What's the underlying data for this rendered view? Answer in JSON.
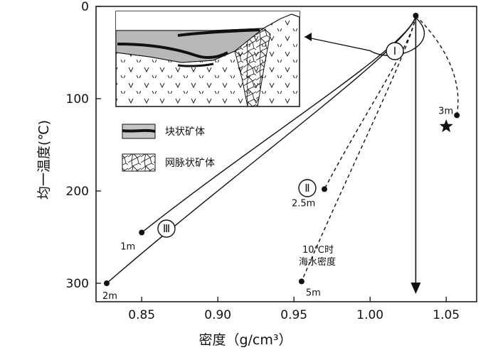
{
  "chart_data": {
    "type": "line",
    "xlabel": "密度（g/cm³）",
    "ylabel": "均一温度(℃)",
    "xlim": [
      0.82,
      1.07
    ],
    "ylim": [
      0,
      320
    ],
    "y_inverted": true,
    "x_ticks": [
      "0.85",
      "0.90",
      "0.95",
      "1.00",
      "1.05"
    ],
    "x_tick_values": [
      0.85,
      0.9,
      0.95,
      1.0,
      1.05
    ],
    "y_ticks": [
      "0",
      "100",
      "200",
      "300"
    ],
    "y_tick_values": [
      0,
      100,
      200,
      300
    ],
    "origin_point": {
      "x": 1.03,
      "y": 10
    },
    "paths": [
      {
        "group": "III",
        "style": "solid",
        "end": {
          "x": 0.85,
          "y": 245
        },
        "label": "1m"
      },
      {
        "group": "III",
        "style": "solid",
        "end": {
          "x": 0.827,
          "y": 300
        },
        "label": "2m"
      },
      {
        "group": "II",
        "style": "dashed",
        "end": {
          "x": 0.97,
          "y": 198
        },
        "label": "2.5m"
      },
      {
        "group": "II",
        "style": "dashed",
        "end": {
          "x": 0.955,
          "y": 298
        },
        "label": "5m"
      },
      {
        "group": "I",
        "style": "dashed",
        "end": {
          "x": 1.057,
          "y": 118
        },
        "label": "3m"
      },
      {
        "group": "I",
        "style": "arrow",
        "end": {
          "x": 1.03,
          "y": 310
        },
        "label": ""
      }
    ],
    "star_marker": {
      "x": 1.05,
      "y": 130
    },
    "group_labels": [
      "Ⅰ",
      "Ⅱ",
      "Ⅲ"
    ],
    "seawater_note": [
      "10℃时",
      "海水密度"
    ],
    "legend": [
      {
        "label": "块状矿体",
        "symbol": "massive-ore-swatch"
      },
      {
        "label": "网脉状矿体",
        "symbol": "stockwork-ore-swatch"
      }
    ],
    "grid": false
  }
}
